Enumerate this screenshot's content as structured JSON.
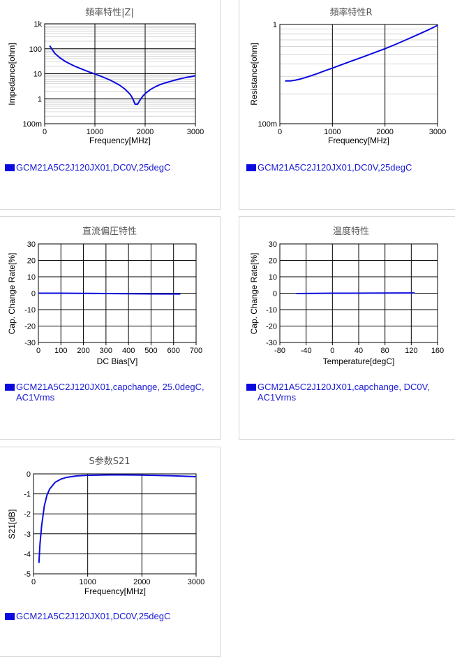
{
  "colors": {
    "series": "#0a0ae0",
    "legend_text": "#1a1ad6",
    "grid_major": "#000000",
    "grid_minor": "#c8c8c8"
  },
  "chart_data": [
    {
      "type": "line",
      "title": "頻率特性|Z|",
      "xlabel": "Frequency[MHz]",
      "ylabel": "Impedance[ohm]",
      "yscale": "log",
      "xlim": [
        0,
        3000
      ],
      "ylim": [
        0.1,
        1000
      ],
      "xticks": [
        0,
        1000,
        2000,
        3000
      ],
      "xtick_labels": [
        "0",
        "1000",
        "2000",
        "3000"
      ],
      "yticks": [
        0.1,
        1,
        10,
        100,
        1000
      ],
      "ytick_labels": [
        "100m",
        "1",
        "10",
        "100",
        "1k"
      ],
      "grid": true,
      "series": [
        {
          "name": "GCM21A5C2J120JX01,DC0V,25degC",
          "x": [
            100,
            200,
            300,
            400,
            500,
            600,
            700,
            800,
            900,
            1000,
            1100,
            1200,
            1300,
            1400,
            1500,
            1600,
            1700,
            1750,
            1800,
            1850,
            1900,
            1950,
            2000,
            2100,
            2200,
            2300,
            2400,
            2500,
            2600,
            2700,
            2800,
            2900,
            3000
          ],
          "y": [
            132,
            66,
            44,
            32,
            25,
            20,
            16.5,
            13.7,
            11.5,
            9.8,
            8.2,
            6.8,
            5.6,
            4.4,
            3.4,
            2.4,
            1.5,
            1.05,
            0.6,
            0.6,
            0.9,
            1.25,
            1.6,
            2.3,
            3.0,
            3.7,
            4.3,
            4.9,
            5.6,
            6.3,
            7.0,
            7.6,
            8.3
          ]
        }
      ]
    },
    {
      "type": "line",
      "title": "頻率特性R",
      "xlabel": "Frequency[MHz]",
      "ylabel": "Resistance[ohm]",
      "yscale": "log",
      "xlim": [
        0,
        3000
      ],
      "ylim": [
        0.1,
        1
      ],
      "xticks": [
        0,
        1000,
        2000,
        3000
      ],
      "xtick_labels": [
        "0",
        "1000",
        "2000",
        "3000"
      ],
      "yticks": [
        0.1,
        1
      ],
      "ytick_labels": [
        "100m",
        "1"
      ],
      "grid": true,
      "series": [
        {
          "name": "GCM21A5C2J120JX01,DC0V,25degC",
          "x": [
            100,
            200,
            300,
            400,
            500,
            600,
            700,
            800,
            900,
            1000,
            1200,
            1400,
            1600,
            1800,
            2000,
            2200,
            2400,
            2600,
            2800,
            3000
          ],
          "y": [
            0.27,
            0.27,
            0.275,
            0.283,
            0.293,
            0.305,
            0.318,
            0.333,
            0.348,
            0.363,
            0.398,
            0.435,
            0.475,
            0.52,
            0.57,
            0.63,
            0.7,
            0.78,
            0.87,
            0.98
          ]
        }
      ]
    },
    {
      "type": "line",
      "title": "直流偏圧特性",
      "xlabel": "DC Bias[V]",
      "ylabel": "Cap. Change Rate[%]",
      "xlim": [
        0,
        700
      ],
      "ylim": [
        -30,
        30
      ],
      "xticks": [
        0,
        100,
        200,
        300,
        400,
        500,
        600,
        700
      ],
      "xtick_labels": [
        "0",
        "100",
        "200",
        "300",
        "400",
        "500",
        "600",
        "700"
      ],
      "yticks": [
        -30,
        -20,
        -10,
        0,
        10,
        20,
        30
      ],
      "ytick_labels": [
        "-30",
        "-20",
        "-10",
        "0",
        "10",
        "20",
        "30"
      ],
      "grid": true,
      "series": [
        {
          "name": "GCM21A5C2J120JX01,capchange, 25.0degC, AC1Vrms",
          "x": [
            0,
            100,
            200,
            300,
            400,
            500,
            630
          ],
          "y": [
            0,
            0,
            -0.1,
            -0.2,
            -0.3,
            -0.4,
            -0.5
          ]
        }
      ]
    },
    {
      "type": "line",
      "title": "温度特性",
      "xlabel": "Temperature[degC]",
      "ylabel": "Cap. Change Rate[%]",
      "xlim": [
        -80,
        160
      ],
      "ylim": [
        -30,
        30
      ],
      "xticks": [
        -80,
        -40,
        0,
        40,
        80,
        120,
        160
      ],
      "xtick_labels": [
        "-80",
        "-40",
        "0",
        "40",
        "80",
        "120",
        "160"
      ],
      "yticks": [
        -30,
        -20,
        -10,
        0,
        10,
        20,
        30
      ],
      "ytick_labels": [
        "-30",
        "-20",
        "-10",
        "0",
        "10",
        "20",
        "30"
      ],
      "grid": true,
      "series": [
        {
          "name": "GCM21A5C2J120JX01,capchange, DC0V, AC1Vrms",
          "x": [
            -55,
            -25,
            0,
            25,
            50,
            85,
            125
          ],
          "y": [
            -0.2,
            -0.1,
            0,
            0,
            0.05,
            0.1,
            0.15
          ]
        }
      ]
    },
    {
      "type": "line",
      "title": "S参数S21",
      "xlabel": "Frequency[MHz]",
      "ylabel": "S21[dB]",
      "xlim": [
        0,
        3000
      ],
      "ylim": [
        -5,
        0
      ],
      "xticks": [
        0,
        1000,
        2000,
        3000
      ],
      "xtick_labels": [
        "0",
        "1000",
        "2000",
        "3000"
      ],
      "yticks": [
        -5,
        -4,
        -3,
        -2,
        -1,
        0
      ],
      "ytick_labels": [
        "-5",
        "-4",
        "-3",
        "-2",
        "-1",
        "0"
      ],
      "grid": true,
      "series": [
        {
          "name": "GCM21A5C2J120JX01,DC0V,25degC",
          "x": [
            100,
            120,
            150,
            200,
            250,
            300,
            400,
            500,
            600,
            800,
            1000,
            1500,
            2000,
            2500,
            3000
          ],
          "y": [
            -4.45,
            -3.5,
            -2.6,
            -1.6,
            -1.05,
            -0.75,
            -0.42,
            -0.27,
            -0.18,
            -0.1,
            -0.07,
            -0.05,
            -0.06,
            -0.09,
            -0.14
          ]
        }
      ]
    }
  ]
}
